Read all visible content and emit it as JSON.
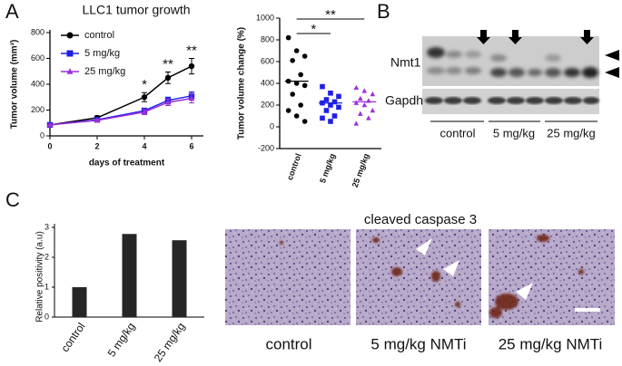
{
  "panel_labels": [
    "A",
    "B",
    "C"
  ],
  "chart_data": [
    {
      "type": "line",
      "title": "LLC1 tumor growth",
      "x_label": "days of treatment",
      "y_label": "Tumor volume (mm³)",
      "x": [
        0,
        2,
        4,
        5,
        6
      ],
      "xlim": [
        0,
        6.5
      ],
      "xticks": [
        0,
        2,
        4,
        6
      ],
      "ylim": [
        0,
        800
      ],
      "yticks": [
        0,
        200,
        400,
        600,
        800
      ],
      "legend": "upper left",
      "series": [
        {
          "name": "control",
          "color": "#000000",
          "marker": "circle",
          "values": [
            85,
            140,
            300,
            450,
            540
          ],
          "errors": [
            8,
            15,
            35,
            45,
            60
          ]
        },
        {
          "name": "5 mg/kg",
          "color": "#1f1fe6",
          "marker": "square",
          "values": [
            85,
            125,
            195,
            275,
            310
          ],
          "errors": [
            5,
            10,
            20,
            25,
            30
          ]
        },
        {
          "name": "25 mg/kg",
          "color": "#9b30d9",
          "marker": "triangle",
          "values": [
            85,
            120,
            185,
            260,
            290
          ],
          "errors": [
            5,
            10,
            20,
            25,
            35
          ]
        }
      ],
      "annotations": [
        {
          "x": 4,
          "label": "*"
        },
        {
          "x": 5,
          "label": "**"
        },
        {
          "x": 6,
          "label": "**"
        }
      ]
    },
    {
      "type": "strip",
      "y_label": "Tumor volume change (%)",
      "categories": [
        "control",
        "5 mg/kg",
        "25 mg/kg"
      ],
      "ylim": [
        -200,
        1000
      ],
      "yticks": [
        -200,
        0,
        200,
        400,
        600,
        800,
        1000
      ],
      "groups": [
        {
          "color": "#000000",
          "marker": "circle",
          "values": [
            820,
            700,
            650,
            610,
            480,
            420,
            400,
            380,
            300,
            200,
            150,
            100,
            50
          ],
          "mean": 420
        },
        {
          "color": "#1f1fe6",
          "marker": "square",
          "values": [
            370,
            310,
            280,
            250,
            230,
            220,
            200,
            180,
            150,
            100,
            80,
            50
          ],
          "mean": 220
        },
        {
          "color": "#9b30d9",
          "marker": "triangle",
          "values": [
            360,
            330,
            300,
            260,
            240,
            220,
            200,
            150,
            120,
            80,
            30
          ],
          "mean": 230
        }
      ],
      "significance": [
        {
          "between": [
            "control",
            "5 mg/kg"
          ],
          "label": "*"
        },
        {
          "between": [
            "control",
            "25 mg/kg"
          ],
          "label": "**"
        }
      ]
    },
    {
      "type": "bar",
      "y_label": "Relative positivity (a.u)",
      "categories": [
        "control",
        "5 mg/kg",
        "25 mg/kg"
      ],
      "values": [
        1,
        2.78,
        2.57
      ],
      "color": "#262626",
      "ylim": [
        0,
        3
      ],
      "yticks": [
        0,
        1,
        2,
        3
      ]
    }
  ],
  "blot": {
    "bands": [
      "Nmt1",
      "Gapdh"
    ],
    "groups": [
      "control",
      "5 mg/kg",
      "25 mg/kg"
    ]
  },
  "micrographs": {
    "title": "cleaved caspase 3",
    "captions": [
      "control",
      "5 mg/kg NMTi",
      "25 mg/kg NMTi"
    ]
  }
}
